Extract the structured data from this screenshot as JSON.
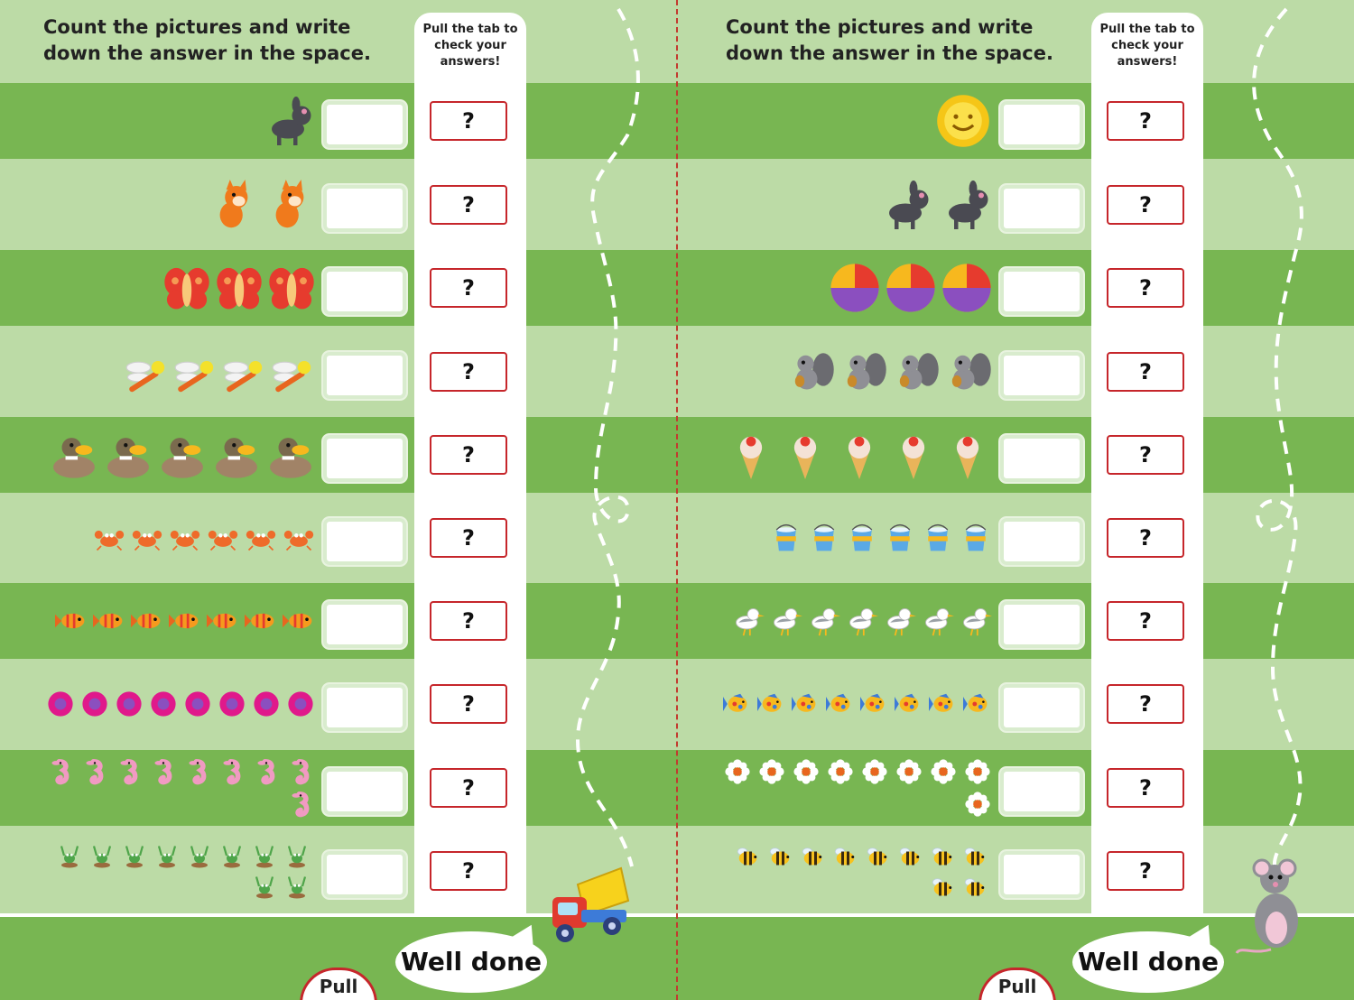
{
  "pages": [
    {
      "header": "Count the pictures and write down the answer in the space.",
      "strip_label": "Pull the tab to check your answers!",
      "pull_label": "Pull",
      "bubble": "Well done",
      "rows": [
        {
          "item": "dog",
          "count": 1
        },
        {
          "item": "cat",
          "count": 2
        },
        {
          "item": "butterfly",
          "count": 3
        },
        {
          "item": "dragonfly",
          "count": 4
        },
        {
          "item": "duck",
          "count": 5
        },
        {
          "item": "crab",
          "count": 6
        },
        {
          "item": "fish",
          "count": 7
        },
        {
          "item": "flower",
          "count": 8
        },
        {
          "item": "seahorse",
          "count": 9
        },
        {
          "item": "frog",
          "count": 10
        }
      ]
    },
    {
      "header": "Count the pictures and write down the answer in the space.",
      "strip_label": "Pull the tab to check your answers!",
      "pull_label": "Pull",
      "bubble": "Well done",
      "rows": [
        {
          "item": "sun",
          "count": 1
        },
        {
          "item": "dog",
          "count": 2
        },
        {
          "item": "ball",
          "count": 3
        },
        {
          "item": "squirrel",
          "count": 4
        },
        {
          "item": "ice-cream",
          "count": 5
        },
        {
          "item": "bucket",
          "count": 6
        },
        {
          "item": "seagull",
          "count": 7
        },
        {
          "item": "tropical-fish",
          "count": 8
        },
        {
          "item": "daisy",
          "count": 9
        },
        {
          "item": "bee",
          "count": 10
        }
      ]
    }
  ],
  "answer_symbol": "?",
  "colors": {
    "dark_row": "#78b652",
    "light_row": "#bcdba6",
    "accent_red": "#c6262b"
  }
}
